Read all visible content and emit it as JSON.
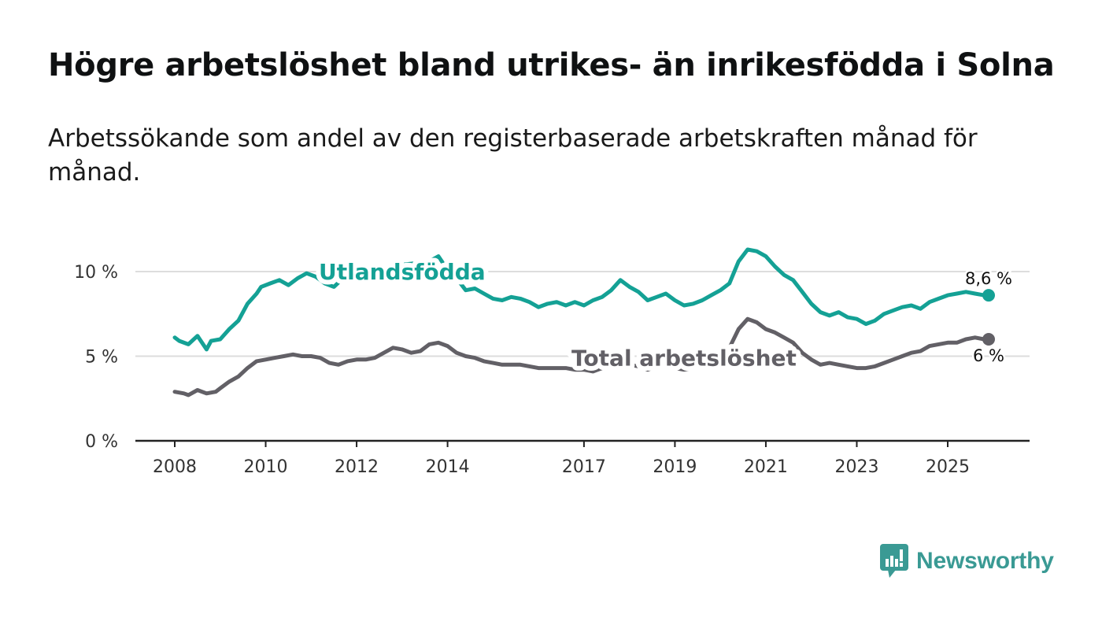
{
  "title": "Högre arbetslöshet bland utrikes- än inrikesfödda i Solna",
  "subtitle": "Arbetssökande som andel av den registerbaserade arbetskraften månad för månad.",
  "logo_text": "Newsworthy",
  "colors": {
    "utlandsfodda": "#14a195",
    "total": "#626066",
    "grid": "#dddddd",
    "axis": "#222222",
    "brand": "#3a9a94"
  },
  "chart_data": {
    "type": "line",
    "title": "Högre arbetslöshet bland utrikes- än inrikesfödda i Solna",
    "xlabel": "",
    "ylabel": "",
    "ylim": [
      0,
      10
    ],
    "xlim": [
      2008.0,
      2025.9
    ],
    "y_ticks": [
      {
        "value": 0,
        "label": "0 %"
      },
      {
        "value": 5,
        "label": "5 %"
      },
      {
        "value": 10,
        "label": "10 %"
      }
    ],
    "x_ticks": [
      {
        "value": 2008,
        "label": "2008"
      },
      {
        "value": 2010,
        "label": "2010"
      },
      {
        "value": 2012,
        "label": "2012"
      },
      {
        "value": 2014,
        "label": "2014"
      },
      {
        "value": 2017,
        "label": "2017"
      },
      {
        "value": 2019,
        "label": "2019"
      },
      {
        "value": 2021,
        "label": "2021"
      },
      {
        "value": 2023,
        "label": "2023"
      },
      {
        "value": 2025,
        "label": "2025"
      }
    ],
    "series": [
      {
        "name": "Utlandsfödda",
        "end_label": "8,6 %",
        "points": [
          [
            2008.0,
            6.1
          ],
          [
            2008.1,
            5.9
          ],
          [
            2008.3,
            5.7
          ],
          [
            2008.5,
            6.2
          ],
          [
            2008.7,
            5.4
          ],
          [
            2008.8,
            5.9
          ],
          [
            2009.0,
            6.0
          ],
          [
            2009.2,
            6.6
          ],
          [
            2009.4,
            7.1
          ],
          [
            2009.6,
            8.1
          ],
          [
            2009.8,
            8.7
          ],
          [
            2009.9,
            9.1
          ],
          [
            2010.1,
            9.3
          ],
          [
            2010.3,
            9.5
          ],
          [
            2010.5,
            9.2
          ],
          [
            2010.7,
            9.6
          ],
          [
            2010.9,
            9.9
          ],
          [
            2011.1,
            9.7
          ],
          [
            2011.3,
            9.3
          ],
          [
            2011.5,
            9.1
          ],
          [
            2011.7,
            9.6
          ],
          [
            2011.9,
            9.4
          ],
          [
            2012.0,
            9.8
          ],
          [
            2012.2,
            9.4
          ],
          [
            2012.5,
            9.6
          ],
          [
            2012.8,
            10.2
          ],
          [
            2013.0,
            10.4
          ],
          [
            2013.3,
            10.5
          ],
          [
            2013.6,
            10.6
          ],
          [
            2013.8,
            10.9
          ],
          [
            2014.0,
            10.1
          ],
          [
            2014.2,
            9.6
          ],
          [
            2014.4,
            8.9
          ],
          [
            2014.6,
            9.0
          ],
          [
            2014.8,
            8.7
          ],
          [
            2015.0,
            8.4
          ],
          [
            2015.2,
            8.3
          ],
          [
            2015.4,
            8.5
          ],
          [
            2015.6,
            8.4
          ],
          [
            2015.8,
            8.2
          ],
          [
            2016.0,
            7.9
          ],
          [
            2016.2,
            8.1
          ],
          [
            2016.4,
            8.2
          ],
          [
            2016.6,
            8.0
          ],
          [
            2016.8,
            8.2
          ],
          [
            2017.0,
            8.0
          ],
          [
            2017.2,
            8.3
          ],
          [
            2017.4,
            8.5
          ],
          [
            2017.6,
            8.9
          ],
          [
            2017.8,
            9.5
          ],
          [
            2018.0,
            9.1
          ],
          [
            2018.2,
            8.8
          ],
          [
            2018.4,
            8.3
          ],
          [
            2018.6,
            8.5
          ],
          [
            2018.8,
            8.7
          ],
          [
            2019.0,
            8.3
          ],
          [
            2019.2,
            8.0
          ],
          [
            2019.4,
            8.1
          ],
          [
            2019.6,
            8.3
          ],
          [
            2019.8,
            8.6
          ],
          [
            2020.0,
            8.9
          ],
          [
            2020.2,
            9.3
          ],
          [
            2020.4,
            10.6
          ],
          [
            2020.6,
            11.3
          ],
          [
            2020.8,
            11.2
          ],
          [
            2021.0,
            10.9
          ],
          [
            2021.2,
            10.3
          ],
          [
            2021.4,
            9.8
          ],
          [
            2021.6,
            9.5
          ],
          [
            2021.8,
            8.8
          ],
          [
            2022.0,
            8.1
          ],
          [
            2022.2,
            7.6
          ],
          [
            2022.4,
            7.4
          ],
          [
            2022.6,
            7.6
          ],
          [
            2022.8,
            7.3
          ],
          [
            2023.0,
            7.2
          ],
          [
            2023.2,
            6.9
          ],
          [
            2023.4,
            7.1
          ],
          [
            2023.6,
            7.5
          ],
          [
            2023.8,
            7.7
          ],
          [
            2024.0,
            7.9
          ],
          [
            2024.2,
            8.0
          ],
          [
            2024.4,
            7.8
          ],
          [
            2024.6,
            8.2
          ],
          [
            2024.8,
            8.4
          ],
          [
            2025.0,
            8.6
          ],
          [
            2025.2,
            8.7
          ],
          [
            2025.4,
            8.8
          ],
          [
            2025.6,
            8.7
          ],
          [
            2025.8,
            8.6
          ],
          [
            2025.9,
            8.6
          ]
        ]
      },
      {
        "name": "Total arbetslöshet",
        "end_label": "6 %",
        "points": [
          [
            2008.0,
            2.9
          ],
          [
            2008.2,
            2.8
          ],
          [
            2008.3,
            2.7
          ],
          [
            2008.5,
            3.0
          ],
          [
            2008.7,
            2.8
          ],
          [
            2008.9,
            2.9
          ],
          [
            2009.0,
            3.1
          ],
          [
            2009.2,
            3.5
          ],
          [
            2009.4,
            3.8
          ],
          [
            2009.6,
            4.3
          ],
          [
            2009.8,
            4.7
          ],
          [
            2010.0,
            4.8
          ],
          [
            2010.2,
            4.9
          ],
          [
            2010.4,
            5.0
          ],
          [
            2010.6,
            5.1
          ],
          [
            2010.8,
            5.0
          ],
          [
            2011.0,
            5.0
          ],
          [
            2011.2,
            4.9
          ],
          [
            2011.4,
            4.6
          ],
          [
            2011.6,
            4.5
          ],
          [
            2011.8,
            4.7
          ],
          [
            2012.0,
            4.8
          ],
          [
            2012.2,
            4.8
          ],
          [
            2012.4,
            4.9
          ],
          [
            2012.6,
            5.2
          ],
          [
            2012.8,
            5.5
          ],
          [
            2013.0,
            5.4
          ],
          [
            2013.2,
            5.2
          ],
          [
            2013.4,
            5.3
          ],
          [
            2013.6,
            5.7
          ],
          [
            2013.8,
            5.8
          ],
          [
            2014.0,
            5.6
          ],
          [
            2014.2,
            5.2
          ],
          [
            2014.4,
            5.0
          ],
          [
            2014.6,
            4.9
          ],
          [
            2014.8,
            4.7
          ],
          [
            2015.0,
            4.6
          ],
          [
            2015.2,
            4.5
          ],
          [
            2015.4,
            4.5
          ],
          [
            2015.6,
            4.5
          ],
          [
            2015.8,
            4.4
          ],
          [
            2016.0,
            4.3
          ],
          [
            2016.2,
            4.3
          ],
          [
            2016.4,
            4.3
          ],
          [
            2016.6,
            4.3
          ],
          [
            2016.8,
            4.2
          ],
          [
            2017.0,
            4.2
          ],
          [
            2017.2,
            4.1
          ],
          [
            2017.4,
            4.3
          ],
          [
            2017.6,
            4.5
          ],
          [
            2017.8,
            4.6
          ],
          [
            2018.0,
            4.5
          ],
          [
            2018.2,
            4.4
          ],
          [
            2018.4,
            4.2
          ],
          [
            2018.6,
            4.4
          ],
          [
            2018.8,
            4.4
          ],
          [
            2019.0,
            4.3
          ],
          [
            2019.2,
            4.2
          ],
          [
            2019.4,
            4.3
          ],
          [
            2019.6,
            4.5
          ],
          [
            2019.8,
            4.7
          ],
          [
            2020.0,
            4.9
          ],
          [
            2020.2,
            5.5
          ],
          [
            2020.4,
            6.6
          ],
          [
            2020.6,
            7.2
          ],
          [
            2020.8,
            7.0
          ],
          [
            2021.0,
            6.6
          ],
          [
            2021.2,
            6.4
          ],
          [
            2021.4,
            6.1
          ],
          [
            2021.6,
            5.8
          ],
          [
            2021.8,
            5.2
          ],
          [
            2022.0,
            4.8
          ],
          [
            2022.2,
            4.5
          ],
          [
            2022.4,
            4.6
          ],
          [
            2022.6,
            4.5
          ],
          [
            2022.8,
            4.4
          ],
          [
            2023.0,
            4.3
          ],
          [
            2023.2,
            4.3
          ],
          [
            2023.4,
            4.4
          ],
          [
            2023.6,
            4.6
          ],
          [
            2023.8,
            4.8
          ],
          [
            2024.0,
            5.0
          ],
          [
            2024.2,
            5.2
          ],
          [
            2024.4,
            5.3
          ],
          [
            2024.6,
            5.6
          ],
          [
            2024.8,
            5.7
          ],
          [
            2025.0,
            5.8
          ],
          [
            2025.2,
            5.8
          ],
          [
            2025.4,
            6.0
          ],
          [
            2025.6,
            6.1
          ],
          [
            2025.8,
            6.0
          ],
          [
            2025.9,
            6.0
          ]
        ]
      }
    ],
    "annotations": [
      {
        "series": "Utlandsfödda",
        "text": "Utlandsfödda",
        "x": 2013.0,
        "y": 10.0
      },
      {
        "series": "Total arbetslöshet",
        "text": "Total arbetslöshet",
        "x": 2019.2,
        "y": 4.9
      }
    ]
  }
}
